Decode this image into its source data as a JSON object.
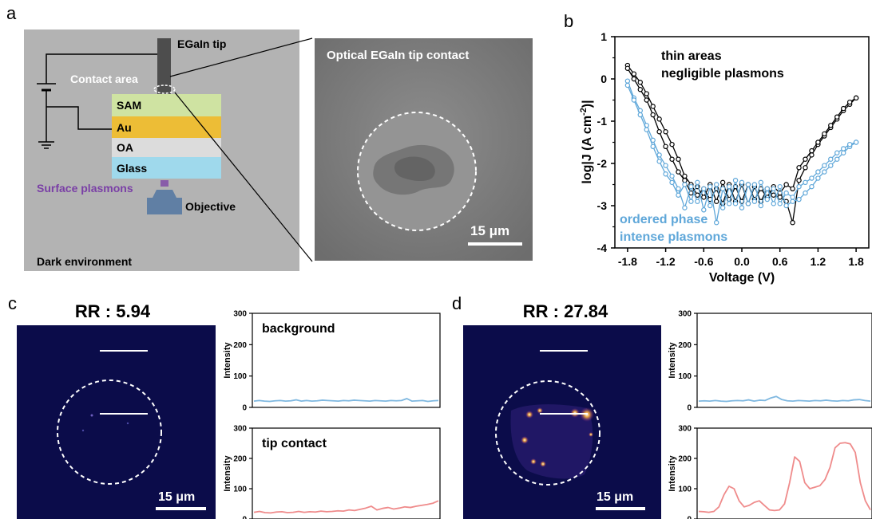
{
  "panel_labels": {
    "a": "a",
    "b": "b",
    "c": "c",
    "d": "d"
  },
  "schematic": {
    "tip_label": "EGaIn tip",
    "contact_area_label": "Contact area",
    "layers": [
      {
        "name": "SAM",
        "color": "#cfe3a2"
      },
      {
        "name": "Au",
        "color": "#edbd36"
      },
      {
        "name": "OA",
        "color": "#dcdcdc"
      },
      {
        "name": "Glass",
        "color": "#9fd9ec"
      }
    ],
    "surface_plasmons_label": "Surface plasmons",
    "objective_label": "Objective",
    "environment_label": "Dark environment",
    "colors": {
      "background": "#b3b3b3",
      "plasmon": "#7a3fa6",
      "objective": "#607fa4",
      "tip": "#4d4d4d"
    }
  },
  "optical_image": {
    "title": "Optical EGaIn tip contact",
    "scalebar": "15 μm"
  },
  "chart_data": [
    {
      "type": "line",
      "xlabel": "Voltage (V)",
      "ylabel": "log|J (A cm-2)|",
      "xlim": [
        -2.0,
        2.0
      ],
      "ylim": [
        -4,
        1
      ],
      "xticks": [
        "-1.8",
        "-1.2",
        "-0.6",
        "0.0",
        "0.6",
        "1.2",
        "1.8"
      ],
      "yticks": [
        "1",
        "0",
        "-1",
        "-2",
        "-3",
        "-4"
      ],
      "annotations": [
        {
          "text": "thin areas\nnegligible plasmons",
          "color": "#000000"
        },
        {
          "text": "ordered phase\nintense plasmons",
          "color": "#5fa7d9"
        }
      ],
      "series": [
        {
          "color": "#000000",
          "x": [
            -1.8,
            -1.7,
            -1.6,
            -1.5,
            -1.4,
            -1.3,
            -1.2,
            -1.1,
            -1.0,
            -0.9,
            -0.8,
            -0.7,
            -0.6,
            -0.5,
            -0.4,
            -0.3,
            -0.2,
            -0.1,
            0.0,
            0.1,
            0.2,
            0.3,
            0.4,
            0.5,
            0.6,
            0.7,
            0.8,
            0.9,
            1.0,
            1.1,
            1.2,
            1.3,
            1.4,
            1.5,
            1.6,
            1.7,
            1.8
          ],
          "y": [
            0.32,
            0.12,
            -0.08,
            -0.35,
            -0.65,
            -0.95,
            -1.25,
            -1.55,
            -1.9,
            -2.3,
            -2.5,
            -2.75,
            -2.6,
            -2.85,
            -2.6,
            -2.95,
            -2.5,
            -2.9,
            -2.5,
            -2.95,
            -2.55,
            -2.9,
            -2.6,
            -2.75,
            -2.8,
            -2.9,
            -3.4,
            -2.4,
            -2.1,
            -1.8,
            -1.55,
            -1.35,
            -1.15,
            -0.95,
            -0.75,
            -0.6,
            -0.45
          ]
        },
        {
          "color": "#000000",
          "x": [
            -1.8,
            -1.7,
            -1.6,
            -1.5,
            -1.4,
            -1.3,
            -1.2,
            -1.1,
            -1.0,
            -0.9,
            -0.8,
            -0.7,
            -0.6,
            -0.5,
            -0.4,
            -0.3,
            -0.2,
            -0.1,
            0.0,
            0.1,
            0.2,
            0.3,
            0.4,
            0.5,
            0.6,
            0.7,
            0.8,
            0.9,
            1.0,
            1.1,
            1.2,
            1.3,
            1.4,
            1.5,
            1.6,
            1.7,
            1.8
          ],
          "y": [
            0.25,
            0.0,
            -0.25,
            -0.5,
            -0.85,
            -1.25,
            -1.6,
            -1.9,
            -2.2,
            -2.4,
            -2.7,
            -2.55,
            -2.8,
            -2.5,
            -2.9,
            -2.45,
            -2.85,
            -2.55,
            -2.9,
            -2.5,
            -2.85,
            -2.6,
            -2.8,
            -2.55,
            -2.7,
            -2.5,
            -2.6,
            -2.1,
            -1.9,
            -1.7,
            -1.5,
            -1.3,
            -1.1,
            -0.9,
            -0.7,
            -0.55,
            -0.45
          ]
        },
        {
          "color": "#5fa7d9",
          "x": [
            -1.8,
            -1.7,
            -1.6,
            -1.5,
            -1.4,
            -1.3,
            -1.2,
            -1.1,
            -1.0,
            -0.9,
            -0.8,
            -0.7,
            -0.6,
            -0.5,
            -0.4,
            -0.3,
            -0.2,
            -0.1,
            0.0,
            0.1,
            0.2,
            0.3,
            0.4,
            0.5,
            0.6,
            0.7,
            0.8,
            0.9,
            1.0,
            1.1,
            1.2,
            1.3,
            1.4,
            1.5,
            1.6,
            1.7,
            1.8
          ],
          "y": [
            -0.05,
            -0.45,
            -0.75,
            -1.1,
            -1.45,
            -1.8,
            -2.05,
            -2.3,
            -2.6,
            -3.05,
            -2.55,
            -2.9,
            -2.6,
            -3.0,
            -2.5,
            -3.05,
            -2.55,
            -2.95,
            -2.45,
            -2.95,
            -2.5,
            -3.0,
            -2.6,
            -2.95,
            -2.55,
            -3.0,
            -2.9,
            -2.85,
            -2.7,
            -2.55,
            -2.35,
            -2.2,
            -2.05,
            -1.9,
            -1.75,
            -1.6,
            -1.5
          ]
        },
        {
          "color": "#5fa7d9",
          "x": [
            -1.8,
            -1.7,
            -1.6,
            -1.5,
            -1.4,
            -1.3,
            -1.2,
            -1.1,
            -1.0,
            -0.9,
            -0.8,
            -0.7,
            -0.6,
            -0.5,
            -0.4,
            -0.3,
            -0.2,
            -0.1,
            0.0,
            0.1,
            0.2,
            0.3,
            0.4,
            0.5,
            0.6,
            0.7,
            0.8,
            0.9,
            1.0,
            1.1,
            1.2,
            1.3,
            1.4,
            1.5,
            1.6,
            1.7,
            1.8
          ],
          "y": [
            -0.15,
            -0.5,
            -0.85,
            -1.2,
            -1.6,
            -1.95,
            -2.25,
            -2.45,
            -2.75,
            -2.5,
            -2.9,
            -2.45,
            -3.1,
            -2.55,
            -3.4,
            -2.6,
            -2.95,
            -2.4,
            -3.05,
            -2.5,
            -2.9,
            -2.45,
            -2.85,
            -2.6,
            -2.95,
            -2.7,
            -2.8,
            -2.55,
            -2.45,
            -2.35,
            -2.2,
            -2.05,
            -1.9,
            -1.75,
            -1.65,
            -1.55,
            -1.5
          ]
        }
      ]
    },
    {
      "type": "line",
      "title": "background",
      "ylabel": "Intensity",
      "ylim": [
        0,
        300
      ],
      "yticks": [
        "300",
        "200",
        "100",
        "0"
      ],
      "series": [
        {
          "color": "#7fb8e0",
          "values": [
            20,
            22,
            20,
            19,
            21,
            22,
            20,
            21,
            24,
            20,
            22,
            20,
            21,
            23,
            22,
            21,
            20,
            22,
            21,
            23,
            22,
            21,
            20,
            22,
            21,
            20,
            22,
            21,
            22,
            28,
            20,
            21,
            22,
            19,
            21,
            22
          ]
        }
      ]
    },
    {
      "type": "line",
      "title": "tip contact",
      "ylabel": "Intensity",
      "ylim": [
        0,
        300
      ],
      "yticks": [
        "300",
        "200",
        "100",
        "0"
      ],
      "series": [
        {
          "color": "#ef8b8b",
          "values": [
            22,
            25,
            21,
            20,
            23,
            24,
            21,
            22,
            25,
            22,
            24,
            23,
            26,
            24,
            25,
            27,
            26,
            30,
            28,
            32,
            36,
            42,
            30,
            35,
            38,
            33,
            36,
            40,
            38,
            42,
            45,
            48,
            52,
            60
          ]
        }
      ]
    },
    {
      "type": "line",
      "ylabel": "Intensity",
      "ylim": [
        0,
        300
      ],
      "yticks": [
        "300",
        "200",
        "100",
        "0"
      ],
      "series": [
        {
          "color": "#7fb8e0",
          "values": [
            20,
            21,
            20,
            22,
            20,
            19,
            21,
            22,
            21,
            24,
            20,
            23,
            22,
            30,
            35,
            25,
            21,
            20,
            22,
            21,
            20,
            22,
            21,
            23,
            21,
            20,
            22,
            21,
            24,
            25,
            22,
            20
          ]
        }
      ]
    },
    {
      "type": "line",
      "ylabel": "Intensity",
      "ylim": [
        0,
        300
      ],
      "yticks": [
        "300",
        "200",
        "100",
        "0"
      ],
      "series": [
        {
          "color": "#ef8b8b",
          "values": [
            25,
            24,
            22,
            25,
            40,
            80,
            108,
            100,
            60,
            40,
            45,
            55,
            60,
            45,
            30,
            28,
            30,
            50,
            120,
            205,
            190,
            120,
            100,
            105,
            110,
            130,
            170,
            235,
            250,
            252,
            248,
            220,
            120,
            60,
            30
          ]
        }
      ]
    }
  ],
  "panel_c": {
    "rr_label": "RR : 5.94",
    "scalebar": "15 μm"
  },
  "panel_d": {
    "rr_label": "RR : 27.84",
    "scalebar": "15 μm"
  }
}
